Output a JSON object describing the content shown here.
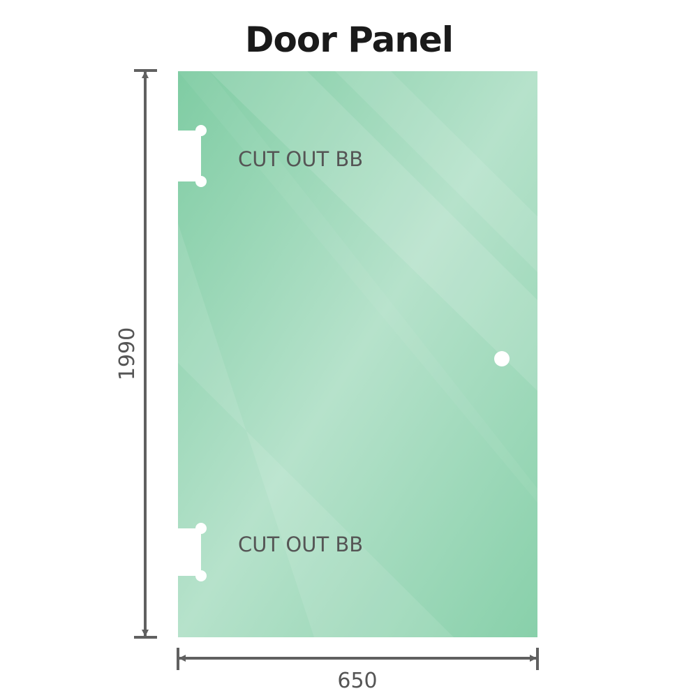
{
  "title": "Door Panel",
  "dimensions": {
    "height": "1990",
    "width": "650"
  },
  "cutouts": [
    {
      "label": "CUT OUT BB"
    },
    {
      "label": "CUT OUT BB"
    }
  ],
  "colors": {
    "glass": "#86cfa8",
    "glass_light": "#b8e3cc",
    "dimension_line": "#606060"
  }
}
